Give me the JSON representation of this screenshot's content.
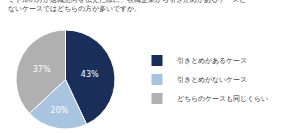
{
  "chart_data": {
    "type": "pie",
    "title": "ミドルの方が退職意向を伝えた際に、在職企業から引き止めがあるケースと\nないケースではどちらの方が多いですか。",
    "categories": [
      "引きとめがあるケース",
      "引きとめがないケース",
      "どちらのケースも同じくらい"
    ],
    "values": [
      43,
      20,
      37
    ],
    "value_labels": [
      "43%",
      "20%",
      "37%"
    ],
    "colors": [
      "#1a2e5a",
      "#a8c4e0",
      "#b0b0b0"
    ],
    "data_labels": true,
    "legend": "right"
  }
}
